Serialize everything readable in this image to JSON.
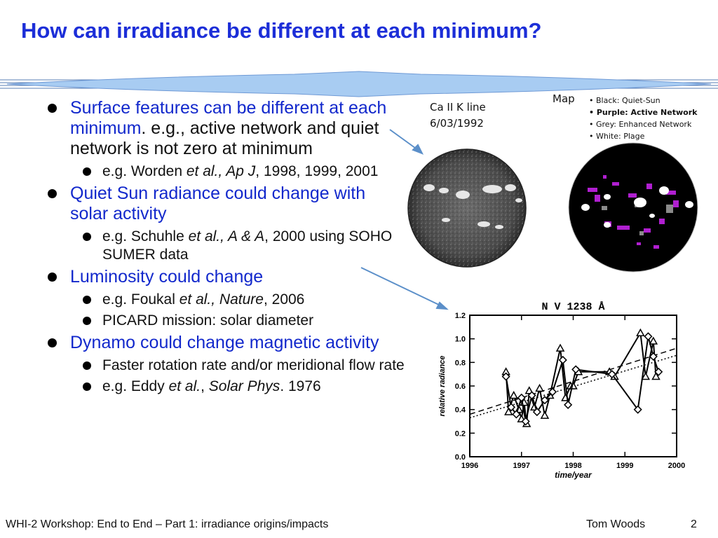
{
  "slide": {
    "title": "How can irradiance be different at each minimum?",
    "bullets": [
      {
        "text": "Surface features can be different at each minimum",
        "text_suffix": ".  e.g., active network and quiet network is not zero at minimum",
        "sub": [
          {
            "pre": "e.g. Worden ",
            "em": "et al., Ap J",
            "post": ", 1998, 1999, 2001"
          }
        ]
      },
      {
        "text": "Quiet Sun radiance could change with solar activity",
        "sub": [
          {
            "pre": "e.g. Schuhle ",
            "em": "et al., A & A",
            "post": ", 2000 using SOHO SUMER data"
          }
        ]
      },
      {
        "text": "Luminosity could change",
        "sub": [
          {
            "pre": "e.g. Foukal ",
            "em": "et al., Nature",
            "post": ", 2006"
          },
          {
            "pre": "PICARD mission: solar diameter",
            "em": "",
            "post": ""
          }
        ]
      },
      {
        "text": "Dynamo could change magnetic activity",
        "sub": [
          {
            "pre": "Faster rotation rate and/or meridional flow rate",
            "em": "",
            "post": ""
          },
          {
            "pre": "e.g. Eddy ",
            "em": "et al.",
            "post": ", ",
            "em2": "Solar Phys",
            "post2": ". 1976"
          }
        ]
      }
    ],
    "figures": {
      "caii_line1": "Ca II K line",
      "caii_line2": "6/03/1992",
      "map_label": "Map",
      "legend": [
        "Black: Quiet-Sun",
        "Purple: Active Network",
        "Grey: Enhanced Network",
        "White: Plage"
      ]
    },
    "footer": {
      "left": "WHI-2 Workshop: End to End – Part 1: irradiance origins/impacts",
      "author": "Tom Woods",
      "page": "2"
    },
    "colors": {
      "title": "#1c2ed8",
      "bullet_text": "#1228cc",
      "arrow": "#5b8fc9",
      "banner": "#7fb0e8",
      "purple": "#b01fd0"
    }
  },
  "chart_data": {
    "type": "line",
    "title": "N V 1238 Å",
    "xlabel": "time/year",
    "ylabel": "relative radiance",
    "xlim": [
      1996,
      2000
    ],
    "ylim": [
      0.0,
      1.2
    ],
    "x_ticks": [
      "1996",
      "1997",
      "1998",
      "1999",
      "2000"
    ],
    "y_ticks": [
      "0.0",
      "0.2",
      "0.4",
      "0.6",
      "0.8",
      "1.0",
      "1.2"
    ],
    "grid": false,
    "series": [
      {
        "marker": "triangle",
        "x": [
          1996.7,
          1996.75,
          1996.85,
          1996.95,
          1997.0,
          1997.05,
          1997.1,
          1997.15,
          1997.25,
          1997.35,
          1997.45,
          1997.55,
          1997.75,
          1997.85,
          1997.95,
          1998.0,
          1998.1,
          1998.7,
          1998.8,
          1999.3,
          1999.4,
          1999.55,
          1999.6
        ],
        "y": [
          0.72,
          0.38,
          0.52,
          0.4,
          0.32,
          0.46,
          0.28,
          0.56,
          0.42,
          0.58,
          0.35,
          0.52,
          0.92,
          0.5,
          0.6,
          0.6,
          0.72,
          0.72,
          0.68,
          1.05,
          0.68,
          0.98,
          0.68
        ]
      },
      {
        "marker": "diamond",
        "x": [
          1996.7,
          1996.8,
          1996.9,
          1997.0,
          1997.08,
          1997.2,
          1997.3,
          1997.45,
          1997.6,
          1997.8,
          1997.9,
          1998.05,
          1998.75,
          1999.25,
          1999.45,
          1999.55,
          1999.65
        ],
        "y": [
          0.68,
          0.42,
          0.36,
          0.5,
          0.3,
          0.52,
          0.38,
          0.48,
          0.55,
          0.82,
          0.44,
          0.74,
          0.7,
          0.4,
          1.02,
          0.85,
          0.72
        ]
      }
    ],
    "fits": [
      {
        "style": "dashed",
        "x": [
          1996,
          2000
        ],
        "y": [
          0.36,
          0.92
        ]
      },
      {
        "style": "dotted",
        "x": [
          1996,
          2000
        ],
        "y": [
          0.33,
          0.86
        ]
      }
    ]
  }
}
